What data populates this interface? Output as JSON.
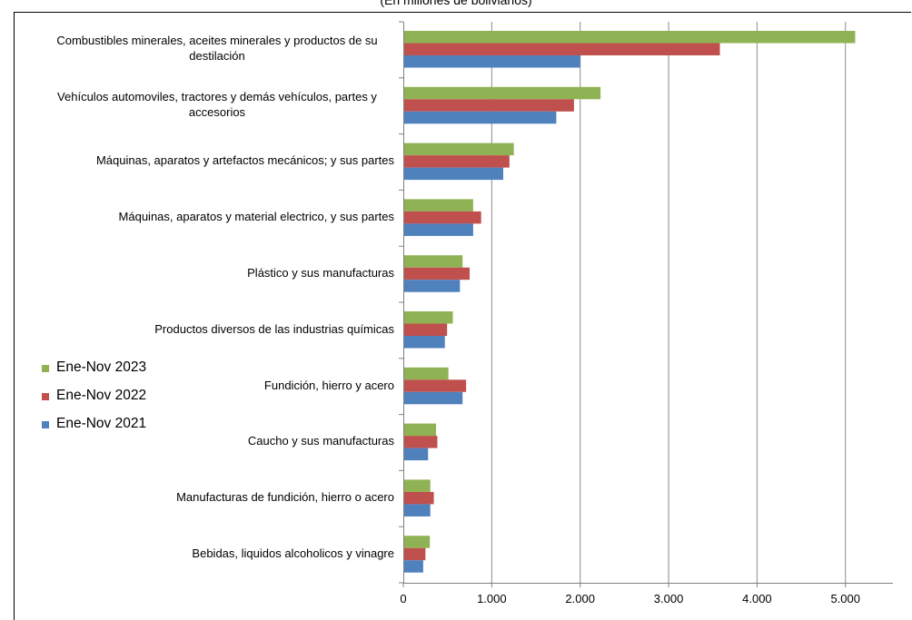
{
  "chart_data": {
    "type": "bar",
    "orientation": "horizontal",
    "subtitle": "(En millones de bolivianos)",
    "categories": [
      "Combustibles minerales, aceites minerales y productos de su destilación",
      "Vehículos automoviles, tractores y demás vehículos, partes y accesorios",
      "Máquinas, aparatos y artefactos mecánicos; y sus partes",
      "Máquinas, aparatos y material electrico, y sus partes",
      "Plástico y sus manufacturas",
      "Productos diversos de las industrias químicas",
      "Fundición, hierro y acero",
      "Caucho y sus manufacturas",
      "Manufacturas de fundición, hierro o acero",
      "Bebidas, liquidos alcoholicos y vinagre"
    ],
    "category_lines": [
      [
        "Combustibles minerales, aceites minerales y productos de su",
        "destilación"
      ],
      [
        "Vehículos automoviles, tractores y demás vehículos, partes y",
        "accesorios"
      ],
      [
        "Máquinas, aparatos y artefactos mecánicos; y sus partes"
      ],
      [
        "Máquinas, aparatos y material electrico, y sus partes"
      ],
      [
        "Plástico y sus manufacturas"
      ],
      [
        "Productos diversos de las industrias químicas"
      ],
      [
        "Fundición, hierro y acero"
      ],
      [
        "Caucho y sus manufacturas"
      ],
      [
        "Manufacturas de fundición, hierro o acero"
      ],
      [
        "Bebidas, liquidos alcoholicos y vinagre"
      ]
    ],
    "series": [
      {
        "name": "Ene-Nov 2023",
        "color": "#8fb354",
        "values": [
          5110,
          2230,
          1250,
          790,
          670,
          560,
          510,
          370,
          305,
          300
        ]
      },
      {
        "name": "Ene-Nov 2022",
        "color": "#c0504d",
        "values": [
          3580,
          1930,
          1200,
          880,
          750,
          495,
          710,
          385,
          345,
          250
        ]
      },
      {
        "name": "Ene-Nov 2021",
        "color": "#4f81bd",
        "values": [
          2000,
          1730,
          1130,
          790,
          640,
          470,
          670,
          280,
          305,
          225
        ]
      }
    ],
    "xlim": [
      0,
      5500
    ],
    "x_ticks": [
      0,
      1000,
      2000,
      3000,
      4000,
      5000
    ],
    "x_tick_labels": [
      "0",
      "1.000",
      "2.000",
      "3.000",
      "4.000",
      "5.000"
    ],
    "grid": "vertical",
    "legend": "left-middle"
  }
}
